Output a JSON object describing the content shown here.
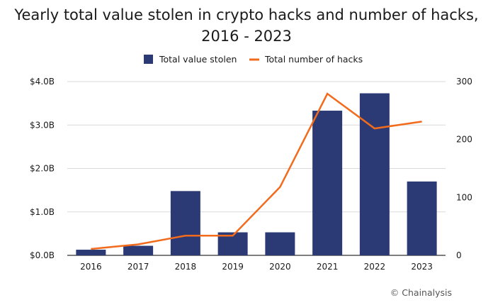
{
  "header": {
    "title_line1": "Yearly total value stolen in crypto hacks and number of hacks,",
    "title_line2": "2016 - 2023"
  },
  "footer": {
    "credit": "© Chainalysis"
  },
  "chart_data": {
    "type": "bar",
    "categories": [
      "2016",
      "2017",
      "2018",
      "2019",
      "2020",
      "2021",
      "2022",
      "2023"
    ],
    "series": [
      {
        "name": "Total value stolen",
        "kind": "bar",
        "axis": "left",
        "color": "#2b3a74",
        "values": [
          0.13,
          0.22,
          1.48,
          0.53,
          0.53,
          3.33,
          3.73,
          1.7
        ]
      },
      {
        "name": "Total number of hacks",
        "kind": "line",
        "axis": "right",
        "color": "#f26b1d",
        "values": [
          11,
          19,
          34,
          34,
          118,
          279,
          219,
          231
        ]
      }
    ],
    "y_left": {
      "ylim": [
        0,
        4.0
      ],
      "ticks": [
        "$0.0B",
        "$1.0B",
        "$2.0B",
        "$3.0B",
        "$4.0B"
      ]
    },
    "y_right": {
      "ylim": [
        0,
        300
      ],
      "ticks": [
        "0",
        "100",
        "200",
        "300"
      ]
    },
    "grid": true,
    "legend": "top-center"
  }
}
